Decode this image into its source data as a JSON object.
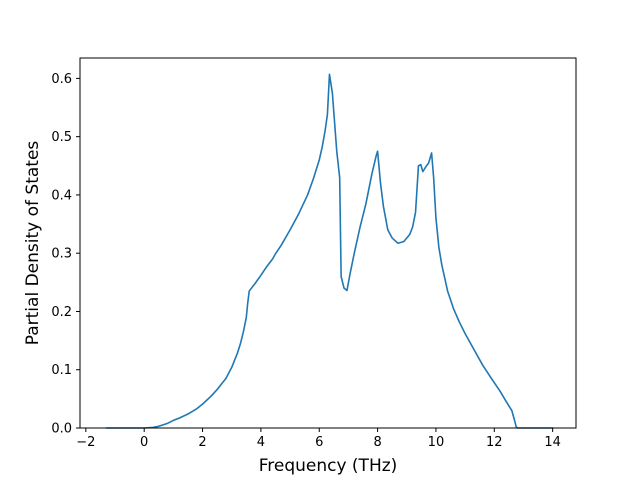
{
  "chart_data": {
    "type": "line",
    "title": "",
    "xlabel": "Frequency (THz)",
    "ylabel": "Partial Density of States",
    "xlim": [
      -2.2,
      14.8
    ],
    "ylim": [
      0.0,
      0.635
    ],
    "xticks": [
      -2,
      0,
      2,
      4,
      6,
      8,
      10,
      12,
      14
    ],
    "xtick_labels": [
      "−2",
      "0",
      "2",
      "4",
      "6",
      "8",
      "10",
      "12",
      "14"
    ],
    "yticks": [
      0.0,
      0.1,
      0.2,
      0.3,
      0.4,
      0.5,
      0.6
    ],
    "ytick_labels": [
      "0.0",
      "0.1",
      "0.2",
      "0.3",
      "0.4",
      "0.5",
      "0.6"
    ],
    "grid": false,
    "legend": "none",
    "series_color": "#1f77b4",
    "series": [
      {
        "x": [
          -1.3,
          -1.0,
          -0.5,
          0.0,
          0.3,
          0.5,
          0.8,
          1.0,
          1.2,
          1.5,
          1.8,
          2.0,
          2.3,
          2.5,
          2.8,
          3.0,
          3.2,
          3.3,
          3.4,
          3.5,
          3.55,
          3.6,
          3.8,
          4.0,
          4.2,
          4.4,
          4.5,
          4.7,
          5.0,
          5.3,
          5.6,
          5.8,
          6.0,
          6.1,
          6.2,
          6.28,
          6.35,
          6.45,
          6.6,
          6.7,
          6.75,
          6.85,
          6.95,
          7.05,
          7.2,
          7.4,
          7.6,
          7.8,
          7.95,
          8.0,
          8.1,
          8.2,
          8.35,
          8.5,
          8.7,
          8.9,
          9.1,
          9.2,
          9.3,
          9.4,
          9.48,
          9.55,
          9.65,
          9.75,
          9.85,
          9.92,
          10.0,
          10.1,
          10.2,
          10.4,
          10.6,
          10.8,
          11.0,
          11.3,
          11.6,
          11.9,
          12.2,
          12.4,
          12.6,
          12.7,
          12.75,
          12.8,
          13.0,
          14.0
        ],
        "y": [
          0.0,
          0.0,
          0.0,
          0.0,
          0.001,
          0.003,
          0.008,
          0.013,
          0.017,
          0.024,
          0.033,
          0.041,
          0.055,
          0.066,
          0.085,
          0.104,
          0.129,
          0.145,
          0.165,
          0.19,
          0.215,
          0.235,
          0.248,
          0.262,
          0.277,
          0.29,
          0.299,
          0.314,
          0.34,
          0.368,
          0.4,
          0.428,
          0.46,
          0.482,
          0.51,
          0.538,
          0.607,
          0.575,
          0.475,
          0.43,
          0.26,
          0.24,
          0.236,
          0.263,
          0.3,
          0.345,
          0.385,
          0.435,
          0.467,
          0.475,
          0.42,
          0.38,
          0.34,
          0.326,
          0.317,
          0.32,
          0.332,
          0.345,
          0.37,
          0.45,
          0.452,
          0.44,
          0.448,
          0.455,
          0.472,
          0.43,
          0.36,
          0.31,
          0.28,
          0.235,
          0.205,
          0.182,
          0.162,
          0.135,
          0.108,
          0.085,
          0.063,
          0.046,
          0.03,
          0.012,
          0.002,
          0.0,
          0.0,
          0.0
        ]
      }
    ]
  }
}
